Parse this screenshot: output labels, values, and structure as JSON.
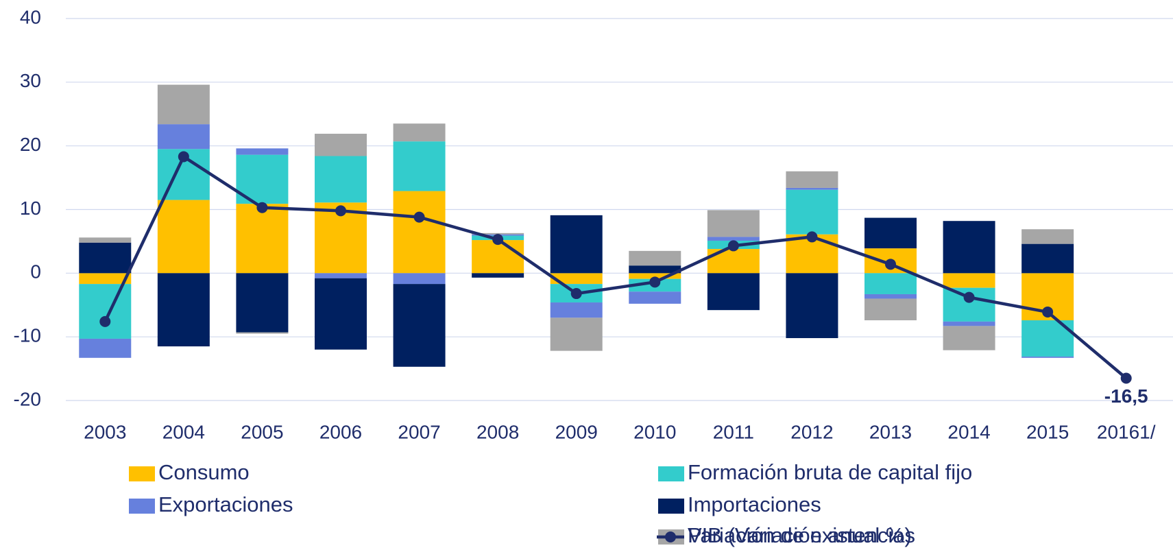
{
  "chart_data": {
    "type": "bar",
    "categories": [
      "2003",
      "2004",
      "2005",
      "2006",
      "2007",
      "2008",
      "2009",
      "2010",
      "2011",
      "2012",
      "2013",
      "2014",
      "2015",
      "20161/"
    ],
    "stacked": true,
    "series": [
      {
        "name": "Consumo",
        "type": "bar",
        "color": "#ffc000",
        "values": [
          -1.7,
          11.5,
          10.9,
          11.1,
          12.9,
          5.2,
          -1.7,
          -0.9,
          3.8,
          6.1,
          3.9,
          -2.3,
          -7.4,
          null
        ]
      },
      {
        "name": "Formación bruta de capital fijo",
        "type": "bar",
        "color": "#33cccc",
        "values": [
          -8.6,
          8.0,
          7.7,
          7.3,
          7.8,
          0.7,
          -2.9,
          -2.0,
          1.3,
          7.0,
          -3.3,
          -5.3,
          -5.7,
          null
        ]
      },
      {
        "name": "Exportaciones",
        "type": "bar",
        "color": "#6680dd",
        "values": [
          -3.0,
          3.9,
          1.0,
          -0.8,
          -1.7,
          0.2,
          -2.4,
          -1.9,
          0.6,
          0.3,
          -0.7,
          -0.7,
          -0.2,
          null
        ]
      },
      {
        "name": "Importaciones",
        "type": "bar",
        "color": "#002060",
        "values": [
          4.8,
          -11.5,
          -9.3,
          -11.2,
          -13.0,
          -0.7,
          9.1,
          1.2,
          -5.8,
          -10.2,
          4.8,
          8.2,
          4.6,
          null
        ]
      },
      {
        "name": "Variación de existencias",
        "type": "bar",
        "color": "#a6a6a6",
        "values": [
          0.8,
          6.2,
          -0.2,
          3.5,
          2.8,
          0.2,
          -5.2,
          2.3,
          4.2,
          2.6,
          -3.4,
          -3.8,
          2.3,
          null
        ]
      },
      {
        "name": "PIB (Variación anual %)",
        "type": "line",
        "color": "#1f2d6b",
        "values": [
          -7.6,
          18.3,
          10.3,
          9.8,
          8.8,
          5.3,
          -3.2,
          -1.4,
          4.3,
          5.7,
          1.4,
          -3.8,
          -6.1,
          -16.5
        ],
        "value_labels": [
          null,
          null,
          null,
          null,
          null,
          null,
          null,
          null,
          null,
          null,
          null,
          null,
          null,
          "-16,5"
        ]
      }
    ],
    "ylim": [
      -20,
      40
    ],
    "yticks": [
      -20,
      -10,
      0,
      10,
      20,
      30,
      40
    ],
    "grid": true,
    "legend": "bottom"
  }
}
